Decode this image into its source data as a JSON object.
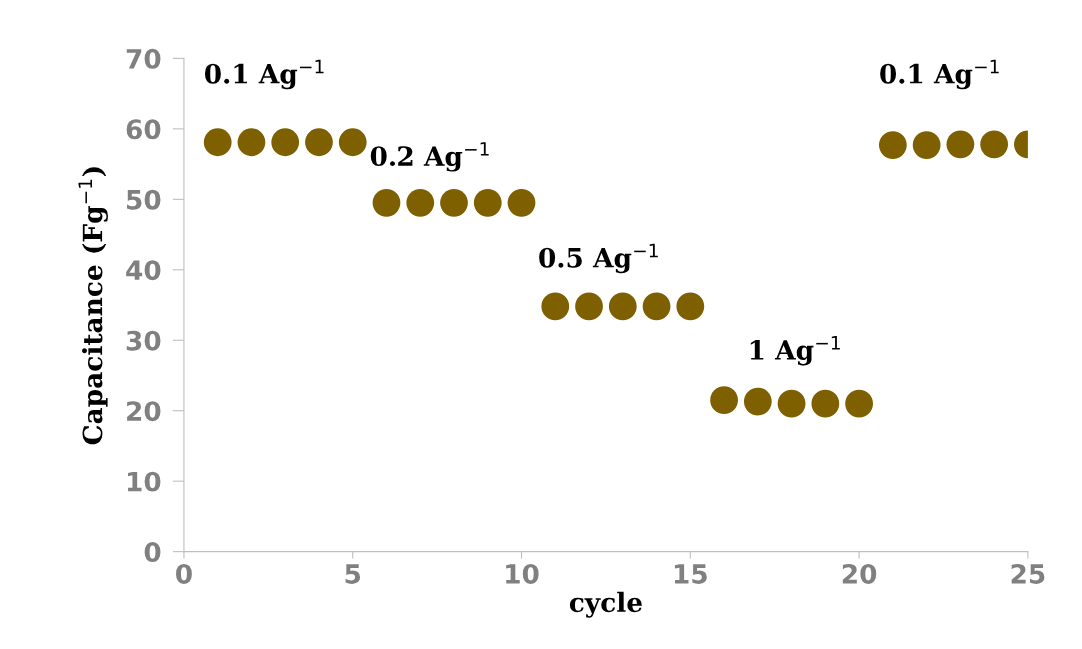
{
  "chart_data": {
    "type": "scatter",
    "xlabel": "cycle",
    "ylabel": "Capacitance (Fg$^{−1}$)",
    "x": [
      1,
      2,
      3,
      4,
      5,
      6,
      7,
      8,
      9,
      10,
      11,
      12,
      13,
      14,
      15,
      16,
      17,
      18,
      19,
      20,
      21,
      22,
      23,
      24,
      25
    ],
    "series": [
      {
        "color": "#7f6000",
        "values": [
          58.1,
          58.1,
          58.1,
          58.1,
          58.1,
          49.5,
          49.5,
          49.5,
          49.5,
          49.5,
          34.8,
          34.8,
          34.8,
          34.8,
          34.8,
          21.5,
          21.3,
          21.0,
          21.0,
          21.0,
          57.7,
          57.7,
          57.8,
          57.8,
          57.8
        ]
      }
    ],
    "xlim": [
      0,
      25
    ],
    "ylim": [
      0,
      70
    ],
    "xticks": [
      0,
      5,
      10,
      15,
      20,
      25
    ],
    "yticks": [
      0,
      10,
      20,
      30,
      40,
      50,
      60,
      70
    ],
    "marker": "circle",
    "grid": false,
    "legend": false,
    "annotations": [
      "0.1 Ag$^{−1}$",
      "0.2 Ag$^{−1}$",
      "0.5 Ag$^{−1}$",
      "1 Ag$^{−1}$",
      "0.1 Ag$^{−1}$"
    ]
  }
}
